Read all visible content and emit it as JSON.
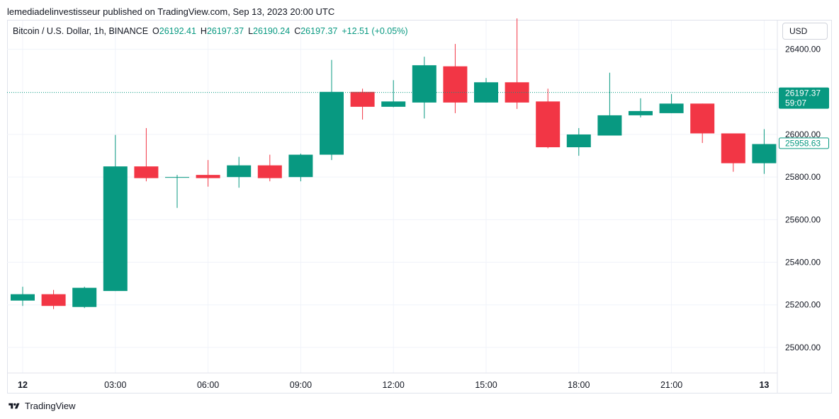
{
  "publisher_line": "lemediadelinvestisseur published on TradingView.com, Sep 13, 2023 20:00 UTC",
  "legend": {
    "symbol": "Bitcoin / U.S. Dollar, 1h, BINANCE",
    "open_label": "O",
    "open": "26192.41",
    "high_label": "H",
    "high": "26197.37",
    "low_label": "L",
    "low": "26190.24",
    "close_label": "C",
    "close": "26197.37",
    "change": "+12.51 (+0.05%)"
  },
  "currency_button": "USD",
  "brand": {
    "name": "TradingView",
    "logo_icon": "tradingview-logo-icon"
  },
  "colors": {
    "up": "#089981",
    "down": "#f23645",
    "grid": "#f0f3fa",
    "text": "#131722"
  },
  "price_tags": {
    "last_price": "26197.37",
    "countdown": "59:07",
    "prev_close": "25958.63"
  },
  "chart_data": {
    "type": "candlestick",
    "title": "Bitcoin / U.S. Dollar, 1h, BINANCE",
    "ylim": [
      24880,
      26535
    ],
    "y_ticks": [
      {
        "value": 26400,
        "label": "26400.00"
      },
      {
        "value": 26000,
        "label": "26000.00"
      },
      {
        "value": 25800,
        "label": "25800.00"
      },
      {
        "value": 25600,
        "label": "25600.00"
      },
      {
        "value": 25400,
        "label": "25400.00"
      },
      {
        "value": 25200,
        "label": "25200.00"
      },
      {
        "value": 25000,
        "label": "25000.00"
      }
    ],
    "x_ticks": [
      {
        "index": 0,
        "label": "12",
        "bold": true
      },
      {
        "index": 3,
        "label": "03:00"
      },
      {
        "index": 6,
        "label": "06:00"
      },
      {
        "index": 9,
        "label": "09:00"
      },
      {
        "index": 12,
        "label": "12:00"
      },
      {
        "index": 15,
        "label": "15:00"
      },
      {
        "index": 18,
        "label": "18:00"
      },
      {
        "index": 21,
        "label": "21:00"
      },
      {
        "index": 24,
        "label": "13",
        "bold": true
      }
    ],
    "candles": [
      {
        "o": 25220,
        "h": 25285,
        "l": 25195,
        "c": 25250
      },
      {
        "o": 25250,
        "h": 25270,
        "l": 25180,
        "c": 25195
      },
      {
        "o": 25190,
        "h": 25285,
        "l": 25185,
        "c": 25280
      },
      {
        "o": 25265,
        "h": 25998,
        "l": 25265,
        "c": 25850
      },
      {
        "o": 25850,
        "h": 26030,
        "l": 25780,
        "c": 25795
      },
      {
        "o": 25798,
        "h": 25810,
        "l": 25655,
        "c": 25800
      },
      {
        "o": 25810,
        "h": 25880,
        "l": 25755,
        "c": 25795
      },
      {
        "o": 25800,
        "h": 25895,
        "l": 25750,
        "c": 25855
      },
      {
        "o": 25855,
        "h": 25905,
        "l": 25780,
        "c": 25795
      },
      {
        "o": 25800,
        "h": 25910,
        "l": 25780,
        "c": 25905
      },
      {
        "o": 25905,
        "h": 26350,
        "l": 25880,
        "c": 26200
      },
      {
        "o": 26200,
        "h": 26215,
        "l": 26070,
        "c": 26130
      },
      {
        "o": 26130,
        "h": 26255,
        "l": 26128,
        "c": 26155
      },
      {
        "o": 26150,
        "h": 26365,
        "l": 26075,
        "c": 26325
      },
      {
        "o": 26320,
        "h": 26425,
        "l": 26100,
        "c": 26150
      },
      {
        "o": 26150,
        "h": 26265,
        "l": 26150,
        "c": 26245
      },
      {
        "o": 26245,
        "h": 26545,
        "l": 26120,
        "c": 26150
      },
      {
        "o": 26155,
        "h": 26215,
        "l": 25935,
        "c": 25940
      },
      {
        "o": 25940,
        "h": 26030,
        "l": 25900,
        "c": 26000
      },
      {
        "o": 25995,
        "h": 26290,
        "l": 25995,
        "c": 26090
      },
      {
        "o": 26090,
        "h": 26170,
        "l": 26080,
        "c": 26110
      },
      {
        "o": 26100,
        "h": 26190,
        "l": 26100,
        "c": 26145
      },
      {
        "o": 26145,
        "h": 26145,
        "l": 25960,
        "c": 26005
      },
      {
        "o": 26005,
        "h": 26005,
        "l": 25825,
        "c": 25865
      },
      {
        "o": 25865,
        "h": 26025,
        "l": 25815,
        "c": 25955
      }
    ]
  }
}
